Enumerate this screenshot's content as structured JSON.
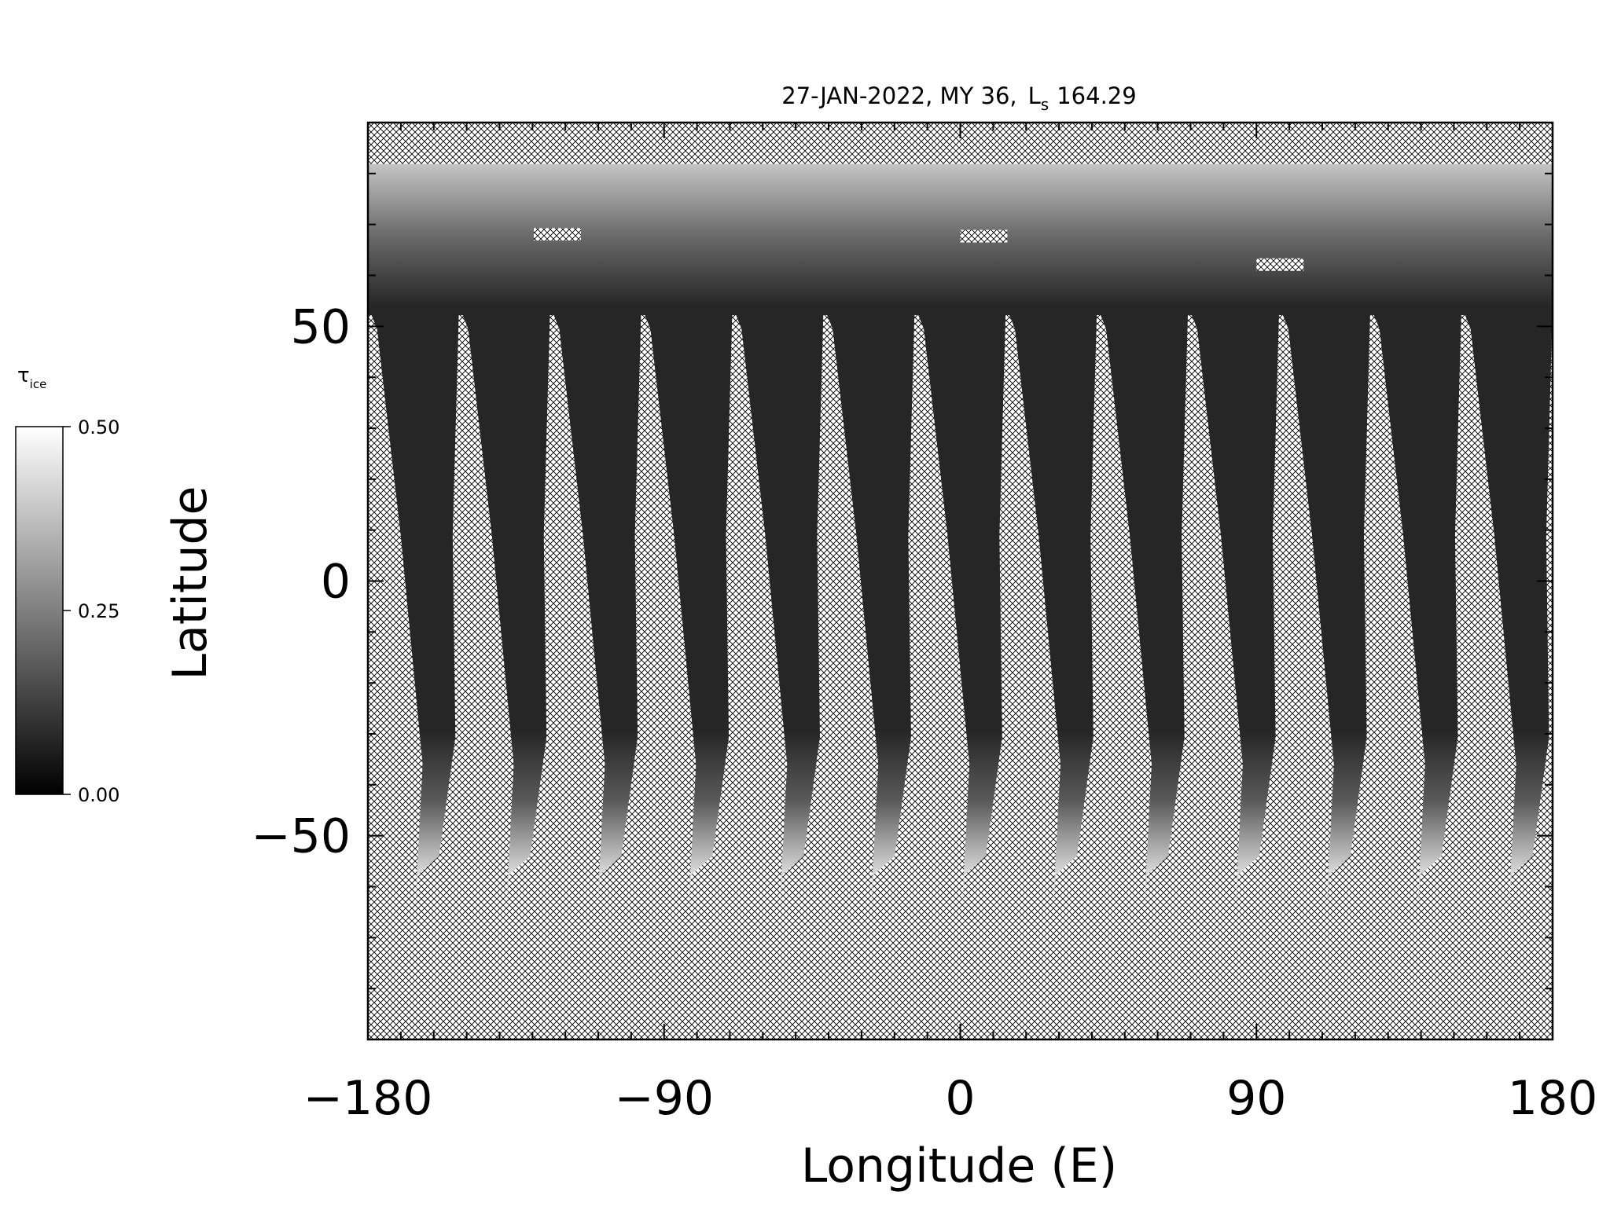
{
  "chart_data": {
    "type": "map",
    "title": "27-JAN-2022, MY 36,",
    "title_symbol": "L",
    "title_subscript": "s",
    "title_value": "164.29",
    "xlabel": "Longitude (E)",
    "ylabel": "Latitude",
    "xlim": [
      -180,
      180
    ],
    "ylim": [
      -90,
      90
    ],
    "xticks": [
      {
        "value": -180,
        "label": "−180"
      },
      {
        "value": -90,
        "label": "−90"
      },
      0,
      90,
      180
    ],
    "yticks": [
      {
        "value": -50,
        "label": "−50"
      },
      0,
      50
    ],
    "xminorticks": [
      -170,
      -160,
      -150,
      -140,
      -130,
      -120,
      -110,
      -100,
      -80,
      -70,
      -60,
      -50,
      -40,
      -30,
      -20,
      -10,
      10,
      20,
      30,
      40,
      50,
      60,
      70,
      80,
      100,
      110,
      120,
      130,
      140,
      150,
      160,
      170
    ],
    "yminorticks": [
      -80,
      -70,
      -60,
      -40,
      -30,
      -20,
      -10,
      10,
      20,
      30,
      40,
      60,
      70,
      80
    ],
    "colorbar": {
      "label": "τ",
      "label_subscript": "ice",
      "lim": [
        0,
        0.5
      ],
      "colors": [
        "#000000",
        "#ffffff"
      ],
      "ticks": [
        {
          "value": 0,
          "label": "0.00"
        },
        {
          "value": 0.25,
          "label": "0.25"
        },
        {
          "value": 0.5,
          "label": "0.50"
        }
      ]
    }
  }
}
